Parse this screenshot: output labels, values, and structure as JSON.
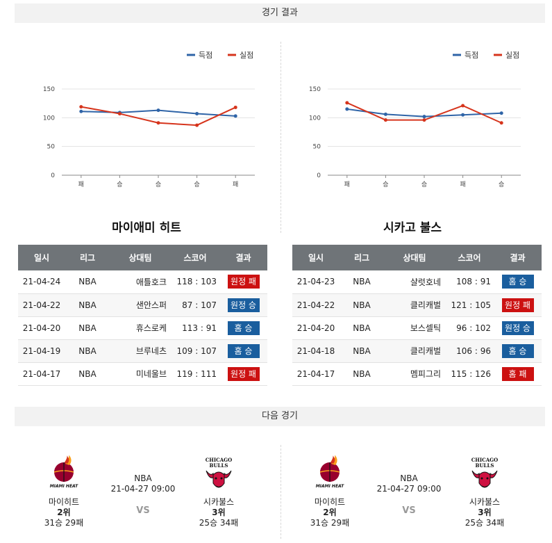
{
  "headers": {
    "results": "경기 결과",
    "next": "다음 경기"
  },
  "legend": {
    "scored": "득점",
    "conceded": "실점"
  },
  "colors": {
    "scored": "#2f64a7",
    "conceded": "#d6341c",
    "win": "#1a5e9e",
    "loss": "#cc1111"
  },
  "chart_data": [
    {
      "type": "line",
      "categories": [
        "패",
        "승",
        "승",
        "승",
        "패"
      ],
      "ylim": [
        0,
        150
      ],
      "yticks": [
        0,
        50,
        100,
        150
      ],
      "grid": true,
      "legend_position": "top-right",
      "series": [
        {
          "name": "득점",
          "values": [
            111,
            109,
            113,
            107,
            103
          ]
        },
        {
          "name": "실점",
          "values": [
            119,
            107,
            91,
            87,
            118
          ]
        }
      ]
    },
    {
      "type": "line",
      "categories": [
        "패",
        "승",
        "승",
        "패",
        "승"
      ],
      "ylim": [
        0,
        150
      ],
      "yticks": [
        0,
        50,
        100,
        150
      ],
      "grid": true,
      "legend_position": "top-right",
      "series": [
        {
          "name": "득점",
          "values": [
            115,
            106,
            102,
            105,
            108
          ]
        },
        {
          "name": "실점",
          "values": [
            126,
            96,
            96,
            121,
            91
          ]
        }
      ]
    }
  ],
  "teams": {
    "heat": {
      "name": "마이애미 히트"
    },
    "bulls": {
      "name": "시카고 불스"
    }
  },
  "table_headers": [
    "일시",
    "리그",
    "상대팀",
    "스코어",
    "결과"
  ],
  "heat_games": [
    {
      "date": "21-04-24",
      "league": "NBA",
      "opponent": "애틀호크",
      "score": "118 : 103",
      "result": "원정 패",
      "type": "loss"
    },
    {
      "date": "21-04-22",
      "league": "NBA",
      "opponent": "샌안스퍼",
      "score": "87 : 107",
      "result": "원정 승",
      "type": "win"
    },
    {
      "date": "21-04-20",
      "league": "NBA",
      "opponent": "휴스로케",
      "score": "113 : 91",
      "result": "홈 승",
      "type": "win"
    },
    {
      "date": "21-04-19",
      "league": "NBA",
      "opponent": "브루네츠",
      "score": "109 : 107",
      "result": "홈 승",
      "type": "win"
    },
    {
      "date": "21-04-17",
      "league": "NBA",
      "opponent": "미네울브",
      "score": "119 : 111",
      "result": "원정 패",
      "type": "loss"
    }
  ],
  "bulls_games": [
    {
      "date": "21-04-23",
      "league": "NBA",
      "opponent": "샬럿호네",
      "score": "108 : 91",
      "result": "홈 승",
      "type": "win"
    },
    {
      "date": "21-04-22",
      "league": "NBA",
      "opponent": "클리캐벌",
      "score": "121 : 105",
      "result": "원정 패",
      "type": "loss"
    },
    {
      "date": "21-04-20",
      "league": "NBA",
      "opponent": "보스셀틱",
      "score": "96 : 102",
      "result": "원정 승",
      "type": "win"
    },
    {
      "date": "21-04-18",
      "league": "NBA",
      "opponent": "클리캐벌",
      "score": "106 : 96",
      "result": "홈 승",
      "type": "win"
    },
    {
      "date": "21-04-17",
      "league": "NBA",
      "opponent": "멤피그리",
      "score": "115 : 126",
      "result": "홈 패",
      "type": "loss"
    }
  ],
  "next_game": {
    "league": "NBA",
    "datetime": "21-04-27 09:00",
    "vs": "VS",
    "home": {
      "name": "마이히트",
      "rank": "2위",
      "record": "31승 29패",
      "logo_icon": "miami-heat-logo",
      "logo_text": "MIAMI HEAT"
    },
    "away": {
      "name": "시카불스",
      "rank": "3위",
      "record": "25승 34패",
      "logo_icon": "chicago-bulls-logo",
      "logo_text": "CHICAGO BULLS"
    }
  }
}
